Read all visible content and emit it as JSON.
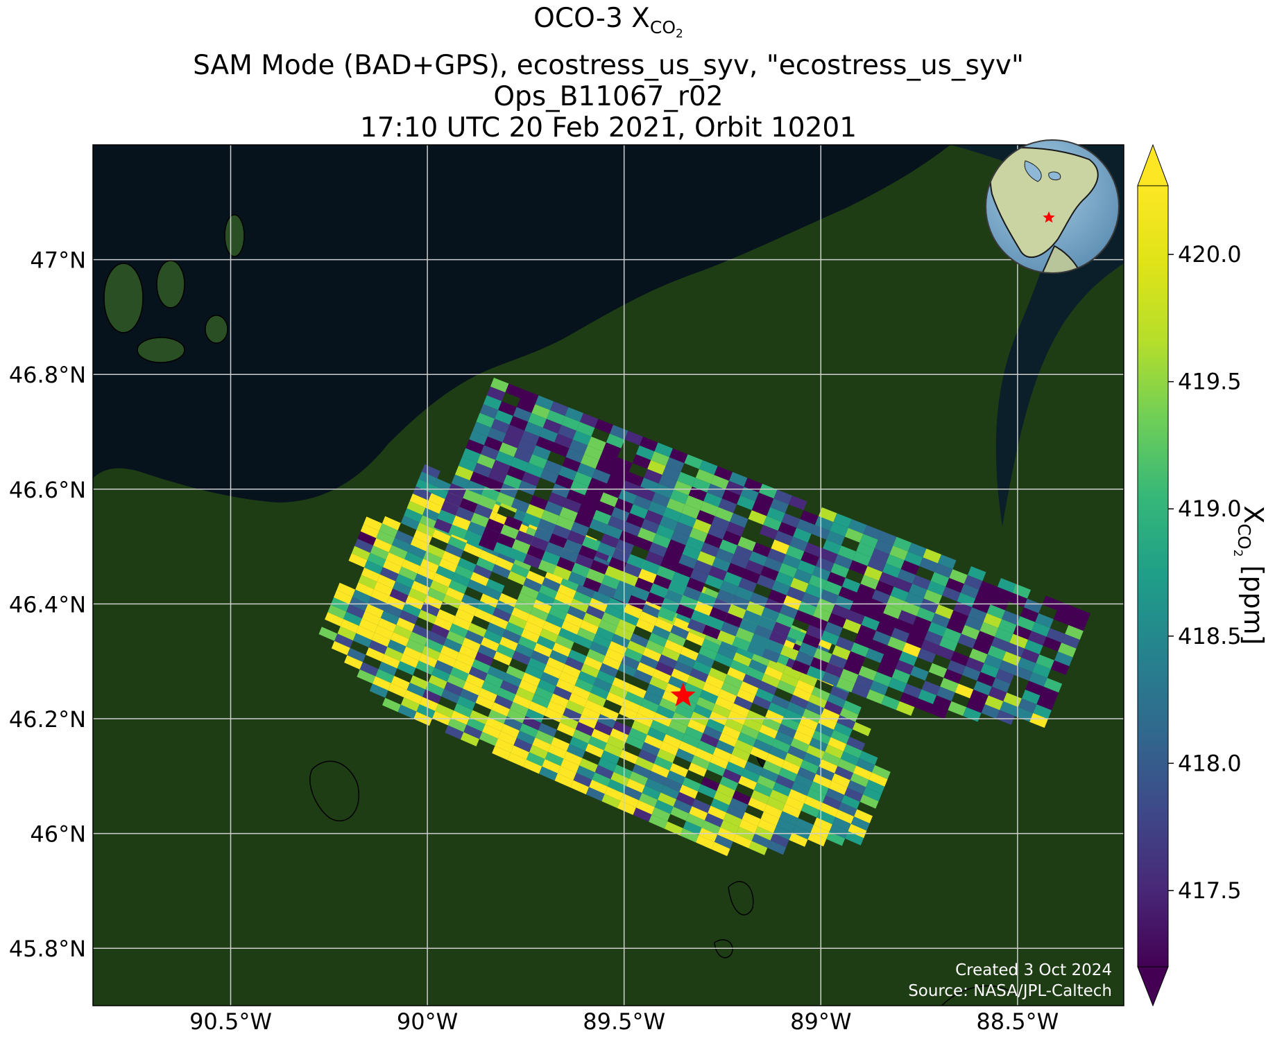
{
  "title": {
    "line1_prefix": "OCO-3 X",
    "line1_sub": "CO",
    "line1_subsub": "2",
    "line2": "SAM Mode (BAD+GPS), ecostress_us_syv, \"ecostress_us_syv\"",
    "line3": "Ops_B11067_r02",
    "line4": "17:10 UTC 20 Feb 2021, Orbit 10201"
  },
  "map": {
    "lon_range": [
      -90.85,
      -88.23
    ],
    "lat_range": [
      45.7,
      47.2
    ],
    "lon_ticks": [
      {
        "value": -90.5,
        "label": "90.5°W"
      },
      {
        "value": -90.0,
        "label": "90°W"
      },
      {
        "value": -89.5,
        "label": "89.5°W"
      },
      {
        "value": -89.0,
        "label": "89°W"
      },
      {
        "value": -88.5,
        "label": "88.5°W"
      }
    ],
    "lat_ticks": [
      {
        "value": 47.0,
        "label": "47°N"
      },
      {
        "value": 46.8,
        "label": "46.8°N"
      },
      {
        "value": 46.6,
        "label": "46.6°N"
      },
      {
        "value": 46.4,
        "label": "46.4°N"
      },
      {
        "value": 46.2,
        "label": "46.2°N"
      },
      {
        "value": 46.0,
        "label": "46°N"
      },
      {
        "value": 45.8,
        "label": "45.8°N"
      }
    ],
    "gridlines": true,
    "target_site": {
      "lon": -89.35,
      "lat": 46.24,
      "marker": "red-star",
      "color": "#ff0000"
    },
    "colors": {
      "lake": "#06121c",
      "land": "#1f3d15",
      "grid": "#cfcfcf"
    }
  },
  "footer": {
    "created": "Created 3 Oct 2024",
    "source": "Source: NASA/JPL-Caltech"
  },
  "colorbar": {
    "label_prefix": "X",
    "label_sub": "CO",
    "label_subsub": "2",
    "label_suffix": " [ppm]",
    "range": [
      417.2,
      420.27
    ],
    "ticks": [
      417.5,
      418.0,
      418.5,
      419.0,
      419.5,
      420.0
    ],
    "tick_labels": [
      "417.5",
      "418.0",
      "418.5",
      "419.0",
      "419.5",
      "420.0"
    ],
    "colormap": "viridis",
    "extend": "both"
  },
  "inset_globe": {
    "marker": "red-star",
    "region": "North America"
  },
  "chart_data": {
    "type": "heatmap",
    "description_units": "XCO2 ppm",
    "swaths": [
      {
        "name": "",
        "rows": 30,
        "cols": 34
      },
      {
        "name": "",
        "rows": 17,
        "cols": 40
      }
    ],
    "value_range": [
      417.2,
      420.27
    ]
  }
}
